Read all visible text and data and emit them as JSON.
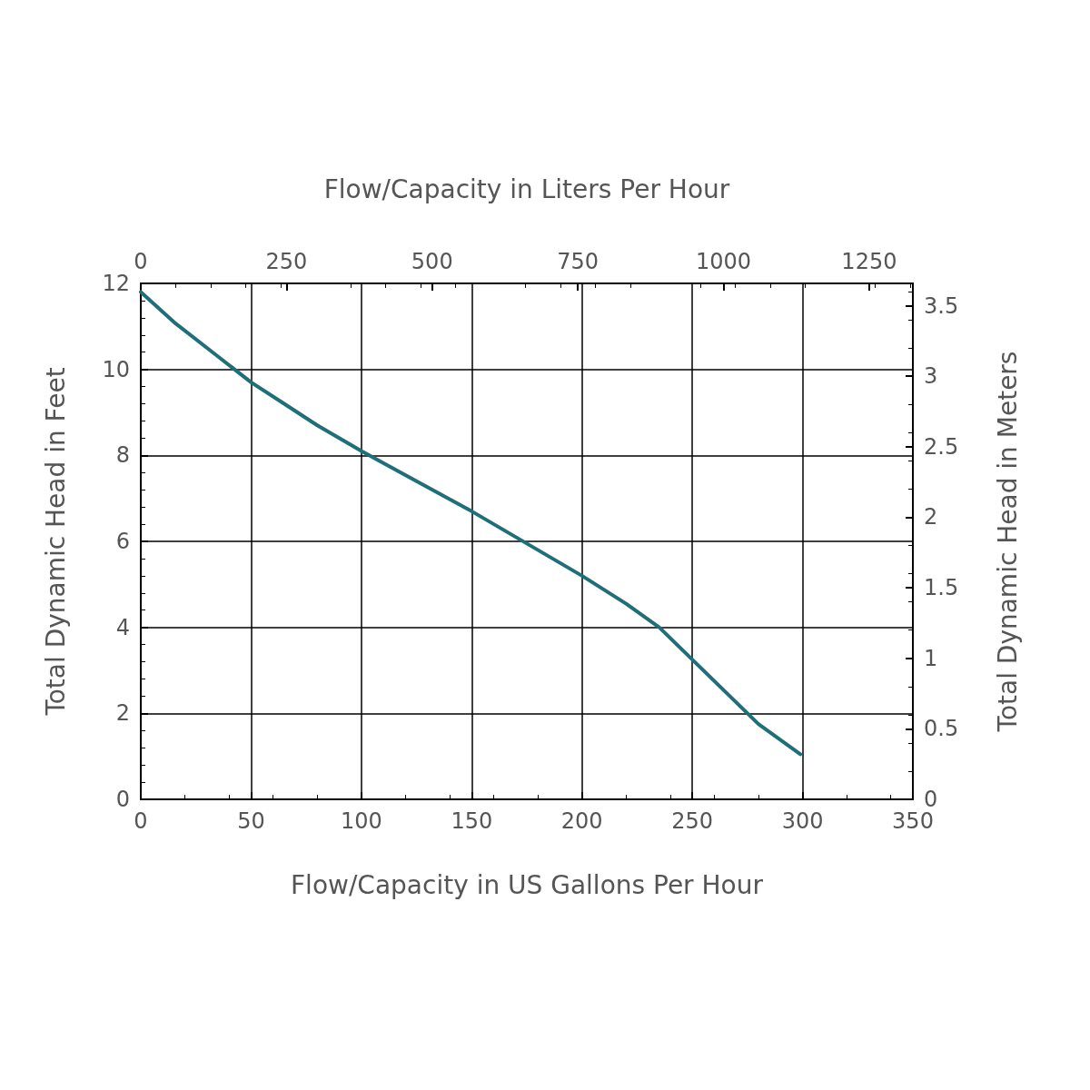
{
  "chart_data": {
    "type": "line",
    "xlabel": "Flow/Capacity in US Gallons Per Hour",
    "x2label": "Flow/Capacity in Liters Per Hour",
    "ylabel": "Total Dynamic Head in Feet",
    "y2label": "Total Dynamic Head in Meters",
    "xlim": [
      0,
      350
    ],
    "xticks": [
      0,
      50,
      100,
      150,
      200,
      250,
      300,
      350
    ],
    "x2lim": [
      0,
      1325
    ],
    "x2ticks": [
      0,
      250,
      500,
      750,
      1000,
      1250
    ],
    "ylim": [
      0,
      12
    ],
    "yticks": [
      0,
      2,
      4,
      6,
      8,
      10,
      12
    ],
    "y2lim": [
      0,
      3.658
    ],
    "y2ticks": [
      0,
      0.5,
      1,
      1.5,
      2,
      2.5,
      3,
      3.5
    ],
    "grid": true,
    "marker": "none",
    "line_style": "solid",
    "series": [
      {
        "color": "#1f6e78",
        "x": [
          0,
          15,
          30,
          50,
          65,
          80,
          100,
          125,
          150,
          175,
          200,
          220,
          235,
          250,
          265,
          280,
          299
        ],
        "values": [
          11.8,
          11.1,
          10.5,
          9.7,
          9.2,
          8.7,
          8.1,
          7.4,
          6.7,
          5.95,
          5.2,
          4.55,
          4.0,
          3.25,
          2.5,
          1.75,
          1.05
        ]
      }
    ]
  }
}
